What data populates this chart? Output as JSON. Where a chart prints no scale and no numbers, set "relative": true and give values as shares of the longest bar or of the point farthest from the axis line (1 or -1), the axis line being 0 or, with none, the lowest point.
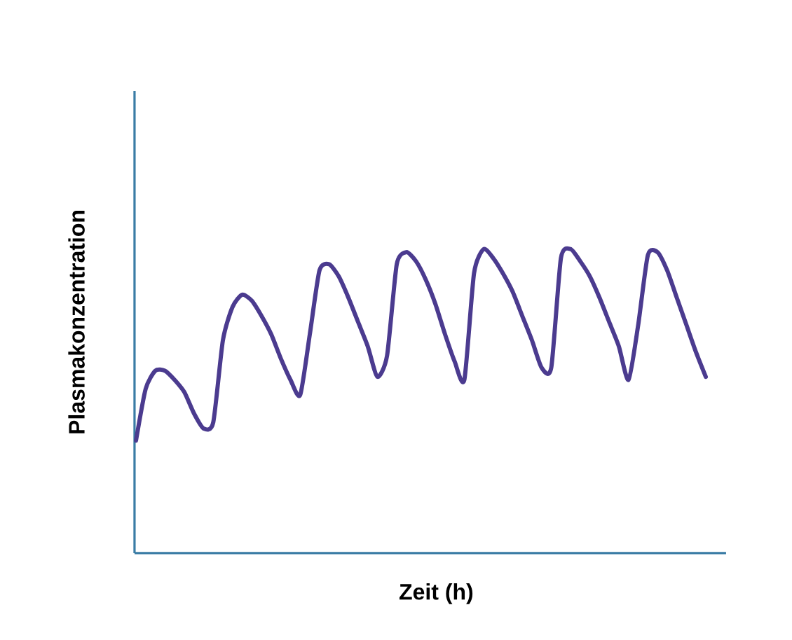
{
  "chart_data": {
    "type": "line",
    "xlabel": "Zeit (h)",
    "ylabel": "Plasmakonzentration",
    "relative": true,
    "color": "#4b3b8f",
    "categories": [
      null,
      null,
      null,
      null,
      null,
      null,
      null,
      null,
      null,
      null,
      null,
      null,
      null,
      null,
      null,
      null,
      null,
      null,
      null,
      null,
      null,
      null,
      null,
      null,
      null,
      null,
      null,
      null,
      null,
      null,
      null,
      null,
      null,
      null,
      null,
      null,
      null,
      null,
      null,
      null,
      null,
      null,
      null,
      null,
      null,
      null,
      null,
      null,
      null,
      null,
      null,
      null,
      null,
      null,
      null,
      null,
      null,
      null,
      null,
      null
    ],
    "values": [
      0.37,
      0.54,
      0.6,
      0.6,
      0.57,
      0.53,
      0.46,
      0.41,
      0.43,
      0.7,
      0.81,
      0.85,
      0.83,
      0.78,
      0.72,
      0.64,
      0.57,
      0.52,
      0.72,
      0.93,
      0.95,
      0.91,
      0.84,
      0.76,
      0.68,
      0.58,
      0.65,
      0.95,
      0.99,
      0.96,
      0.9,
      0.82,
      0.72,
      0.63,
      0.57,
      0.92,
      1,
      0.97,
      0.92,
      0.86,
      0.78,
      0.7,
      0.61,
      0.61,
      0.97,
      1,
      0.96,
      0.91,
      0.84,
      0.76,
      0.68,
      0.57,
      0.75,
      0.98,
      0.99,
      0.93,
      0.84,
      0.75,
      0.66,
      0.58
    ]
  }
}
